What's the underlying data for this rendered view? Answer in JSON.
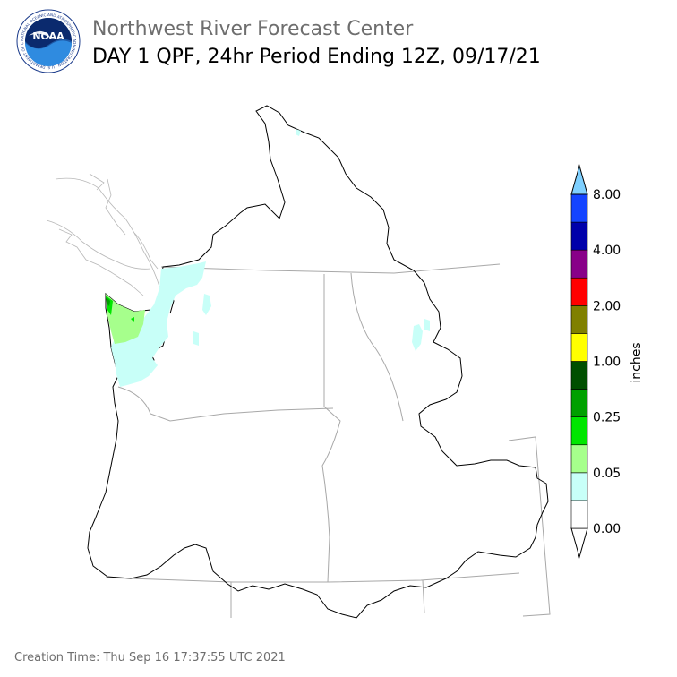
{
  "header": {
    "org_title": "Northwest River Forecast Center",
    "product_title": "DAY 1 QPF, 24hr Period Ending 12Z, 09/17/21"
  },
  "logo": {
    "text": "NOAA",
    "ring_text": "NATIONAL OCEANIC AND ATMOSPHERIC ADMINISTRATION · U.S. DEPARTMENT OF COMMERCE"
  },
  "colorbar": {
    "unit_label": "inches",
    "tick_labels": [
      "0.00",
      "0.05",
      "0.25",
      "1.00",
      "2.00",
      "4.00",
      "8.00"
    ],
    "colors": [
      "#ffffff",
      "#c8fff8",
      "#a6ff8c",
      "#00e600",
      "#00a000",
      "#004f00",
      "#ffff00",
      "#808000",
      "#ff0000",
      "#880088",
      "#0000aa",
      "#1444ff",
      "#7fd0ff"
    ]
  },
  "map": {
    "precip_colors": {
      "light": "#c8fff8",
      "moderate": "#a6ff8c",
      "heavy": "#00e600",
      "heavier": "#00a000"
    }
  },
  "footer": {
    "creation_time": "Creation Time: Thu Sep 16 17:37:55 UTC 2021"
  }
}
